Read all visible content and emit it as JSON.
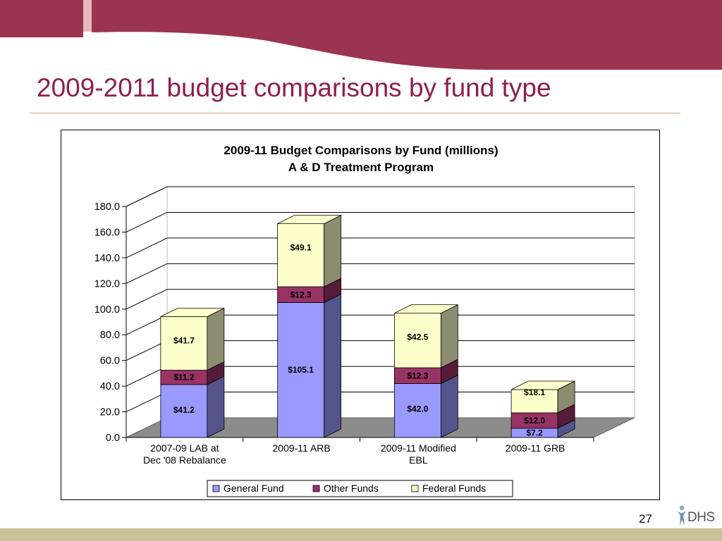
{
  "slide": {
    "title": "2009-2011 budget comparisons by fund type",
    "page_number": "27",
    "logo_text": "DHS"
  },
  "colors": {
    "header_maroon": "#9b3451",
    "title": "#8e1f4e",
    "footer": "#c9c39a"
  },
  "chart_data": {
    "type": "bar",
    "stacked": true,
    "three_d": true,
    "title": [
      "2009-11 Budget Comparisons by Fund (millions)",
      "A & D Treatment Program"
    ],
    "categories": [
      [
        "2007-09 LAB at",
        "Dec '08 Rebalance"
      ],
      [
        "2009-11 ARB"
      ],
      [
        "2009-11 Modified",
        "EBL"
      ],
      [
        "2009-11 GRB"
      ]
    ],
    "series": [
      {
        "name": "General Fund",
        "color": "#9999ff",
        "values": [
          41.2,
          105.1,
          42.0,
          7.2
        ],
        "labels": [
          "$41.2",
          "$105.1",
          "$42.0",
          "$7.2"
        ]
      },
      {
        "name": "Other Funds",
        "color": "#993366",
        "values": [
          11.2,
          12.3,
          12.3,
          12.0
        ],
        "labels": [
          "$11.2",
          "$12.3",
          "$12.3",
          "$12.0"
        ]
      },
      {
        "name": "Federal Funds",
        "color": "#ffffcc",
        "values": [
          41.7,
          49.1,
          42.5,
          18.1
        ],
        "labels": [
          "$41.7",
          "$49.1",
          "$42.5",
          "$18.1"
        ]
      }
    ],
    "ylim": [
      0,
      180
    ],
    "yticks": [
      "0.0",
      "20.0",
      "40.0",
      "60.0",
      "80.0",
      "100.0",
      "120.0",
      "140.0",
      "160.0",
      "180.0"
    ],
    "grid": true,
    "legend": "bottom"
  }
}
